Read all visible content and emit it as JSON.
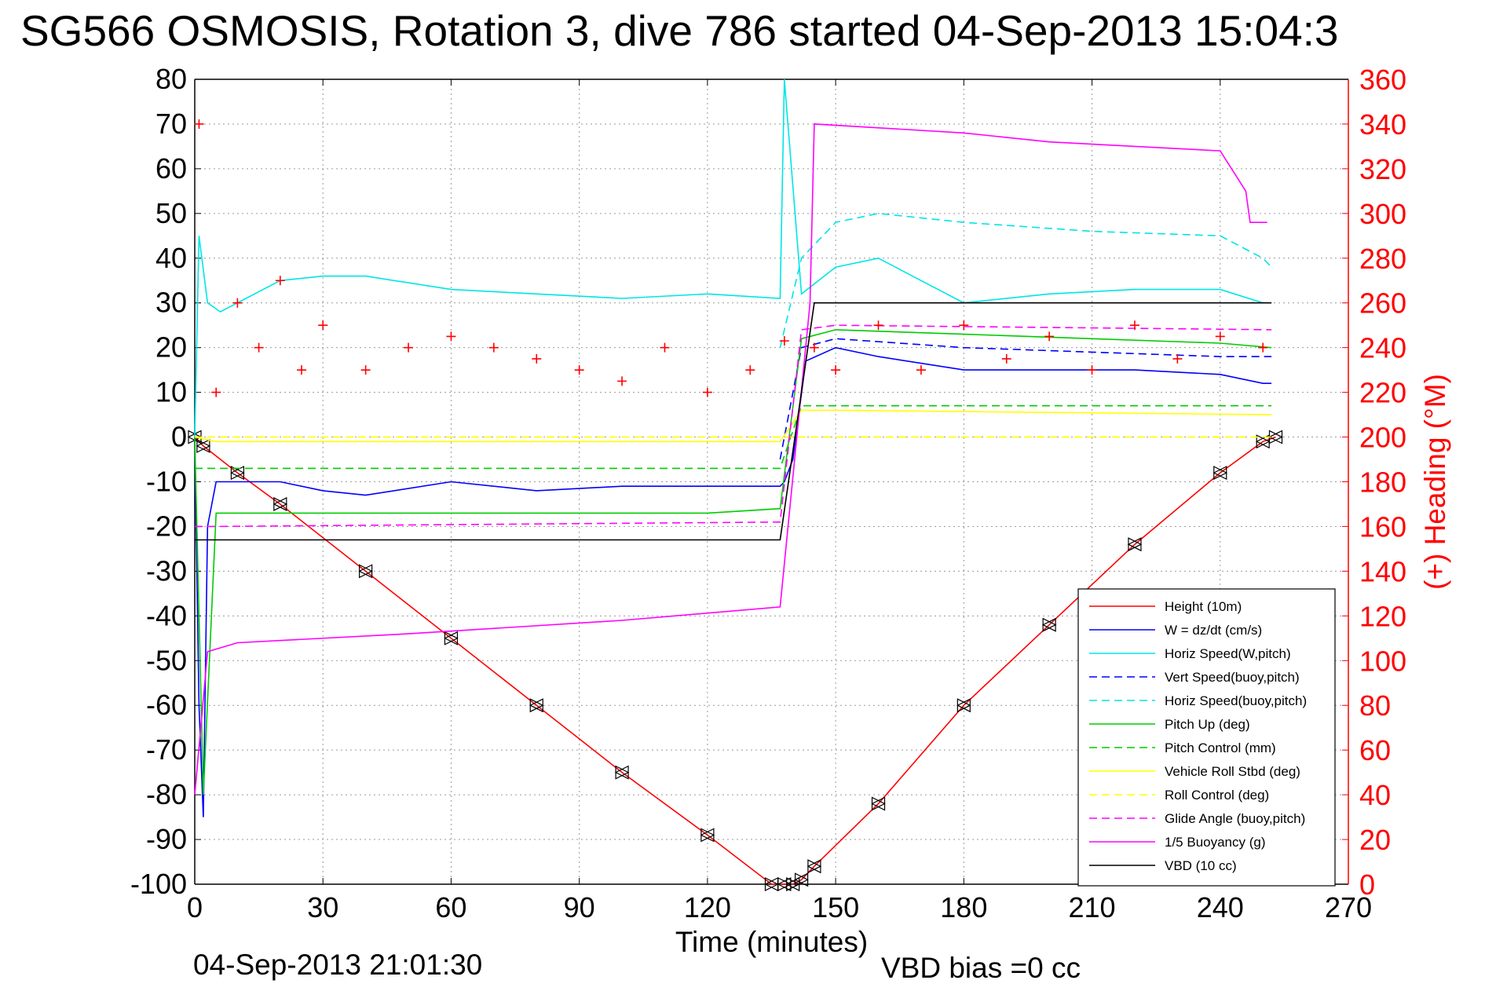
{
  "title": "SG566 OSMOSIS, Rotation 3, dive 786 started 04-Sep-2013 15:04:3",
  "footer": {
    "date": "04-Sep-2013 21:01:30",
    "vbd_bias": "VBD bias =0 cc"
  },
  "chart_data": {
    "type": "line",
    "xlabel": "Time (minutes)",
    "ylabel": "",
    "y2label": "(+) Heading (°M)",
    "xlim": [
      0,
      270
    ],
    "ylim": [
      -100,
      80
    ],
    "y2lim": [
      0,
      360
    ],
    "xticks": [
      0,
      30,
      60,
      90,
      120,
      150,
      180,
      210,
      240,
      270
    ],
    "yticks": [
      80,
      70,
      60,
      50,
      40,
      30,
      20,
      10,
      0,
      -10,
      -20,
      -30,
      -40,
      -50,
      -60,
      -70,
      -80,
      -90,
      -100
    ],
    "y2ticks": [
      360,
      340,
      320,
      300,
      280,
      260,
      240,
      220,
      200,
      180,
      160,
      140,
      120,
      100,
      80,
      60,
      40,
      20,
      0
    ],
    "grid": true,
    "legend_position": "bottom-right",
    "legend": [
      {
        "label": "Height (10m)",
        "color": "#ff0000",
        "dash": "solid"
      },
      {
        "label": "W = dz/dt (cm/s)",
        "color": "#0000ff",
        "dash": "solid"
      },
      {
        "label": "Horiz Speed(W,pitch)",
        "color": "#00e5e5",
        "dash": "solid"
      },
      {
        "label": "Vert Speed(buoy,pitch)",
        "color": "#0000ff",
        "dash": "dashed"
      },
      {
        "label": "Horiz Speed(buoy,pitch)",
        "color": "#00e5e5",
        "dash": "dashed"
      },
      {
        "label": "Pitch Up (deg)",
        "color": "#00cc00",
        "dash": "solid"
      },
      {
        "label": "Pitch Control (mm)",
        "color": "#00cc00",
        "dash": "dashed"
      },
      {
        "label": "Vehicle Roll Stbd (deg)",
        "color": "#ffff00",
        "dash": "solid"
      },
      {
        "label": "Roll Control (deg)",
        "color": "#ffff00",
        "dash": "dashed"
      },
      {
        "label": "Glide Angle (buoy,pitch)",
        "color": "#ff00ff",
        "dash": "dashed"
      },
      {
        "label": "1/5 Buoyancy (g)",
        "color": "#ff00ff",
        "dash": "solid"
      },
      {
        "label": "VBD (10 cc)",
        "color": "#000000",
        "dash": "solid"
      }
    ],
    "series": [
      {
        "name": "Height (10m)",
        "x": [
          0,
          2,
          10,
          20,
          40,
          60,
          80,
          100,
          120,
          135,
          138,
          140,
          142,
          145,
          160,
          180,
          200,
          220,
          240,
          250,
          253
        ],
        "y": [
          0,
          -2,
          -8,
          -15,
          -30,
          -45,
          -60,
          -75,
          -89,
          -100,
          -100,
          -100,
          -99,
          -96,
          -82,
          -60,
          -42,
          -24,
          -8,
          -1,
          0
        ]
      },
      {
        "name": "W = dz/dt (cm/s)",
        "x": [
          0,
          1,
          2,
          3,
          5,
          10,
          20,
          30,
          40,
          60,
          80,
          100,
          120,
          137,
          138,
          140,
          143,
          150,
          160,
          180,
          200,
          220,
          240,
          250,
          252
        ],
        "y": [
          0,
          -60,
          -85,
          -20,
          -10,
          -10,
          -10,
          -12,
          -13,
          -10,
          -12,
          -11,
          -11,
          -11,
          -10,
          -5,
          17,
          20,
          18,
          15,
          15,
          15,
          14,
          12,
          12
        ]
      },
      {
        "name": "Horiz Speed(W,pitch)",
        "x": [
          0,
          1,
          3,
          6,
          10,
          20,
          30,
          40,
          60,
          80,
          100,
          120,
          137,
          138,
          142,
          150,
          160,
          170,
          180,
          200,
          220,
          240,
          250,
          252
        ],
        "y": [
          0,
          45,
          30,
          28,
          30,
          35,
          36,
          36,
          33,
          32,
          31,
          32,
          31,
          80,
          32,
          38,
          40,
          35,
          30,
          32,
          33,
          33,
          30,
          30
        ]
      },
      {
        "name": "Vert Speed(buoy,pitch)",
        "x": [
          137,
          142,
          150,
          180,
          210,
          240,
          252
        ],
        "y": [
          -5,
          20,
          22,
          20,
          19,
          18,
          18
        ]
      },
      {
        "name": "Horiz Speed(buoy,pitch)",
        "x": [
          137,
          142,
          150,
          160,
          180,
          210,
          240,
          250,
          252
        ],
        "y": [
          20,
          40,
          48,
          50,
          48,
          46,
          45,
          40,
          38
        ]
      },
      {
        "name": "Pitch Up (deg)",
        "x": [
          0,
          2,
          5,
          10,
          40,
          80,
          120,
          137,
          142,
          150,
          180,
          210,
          240,
          252
        ],
        "y": [
          0,
          -80,
          -17,
          -17,
          -17,
          -17,
          -17,
          -16,
          22,
          24,
          23,
          22,
          21,
          20
        ]
      },
      {
        "name": "Pitch Control (mm)",
        "x": [
          0,
          5,
          137,
          142,
          150,
          252
        ],
        "y": [
          -7,
          -7,
          -7,
          7,
          7,
          7
        ]
      },
      {
        "name": "Vehicle Roll Stbd (deg)",
        "x": [
          0,
          5,
          137,
          142,
          150,
          252
        ],
        "y": [
          0,
          -1,
          -1,
          6,
          6,
          5
        ]
      },
      {
        "name": "Roll Control (deg)",
        "x": [
          0,
          5,
          137,
          142,
          150,
          252
        ],
        "y": [
          0,
          0,
          0,
          0,
          0,
          0
        ]
      },
      {
        "name": "Glide Angle (buoy,pitch)",
        "x": [
          0,
          5,
          137,
          142,
          150,
          252
        ],
        "y": [
          -20,
          -20,
          -19,
          24,
          25,
          24
        ]
      },
      {
        "name": "1/5 Buoyancy (g)",
        "x": [
          0,
          3,
          10,
          50,
          100,
          137,
          144,
          145,
          180,
          200,
          240,
          246,
          247,
          251
        ],
        "y": [
          -80,
          -48,
          -46,
          -44,
          -41,
          -38,
          30,
          70,
          68,
          66,
          64,
          55,
          48,
          48
        ]
      },
      {
        "name": "VBD (10 cc)",
        "x": [
          0,
          3,
          137,
          145,
          180,
          252
        ],
        "y": [
          -23,
          -23,
          -23,
          30,
          30,
          30
        ]
      },
      {
        "name": "(+) Heading (°M)",
        "axis": "right",
        "style": "markers",
        "x": [
          1,
          5,
          10,
          15,
          20,
          25,
          30,
          40,
          50,
          60,
          70,
          80,
          90,
          100,
          110,
          120,
          130,
          138,
          145,
          150,
          160,
          170,
          180,
          190,
          200,
          210,
          220,
          230,
          240,
          250
        ],
        "y": [
          340,
          220,
          260,
          240,
          270,
          230,
          250,
          230,
          240,
          245,
          240,
          235,
          230,
          225,
          240,
          220,
          230,
          243,
          240,
          230,
          250,
          230,
          250,
          235,
          245,
          230,
          250,
          235,
          245,
          240
        ]
      }
    ]
  }
}
